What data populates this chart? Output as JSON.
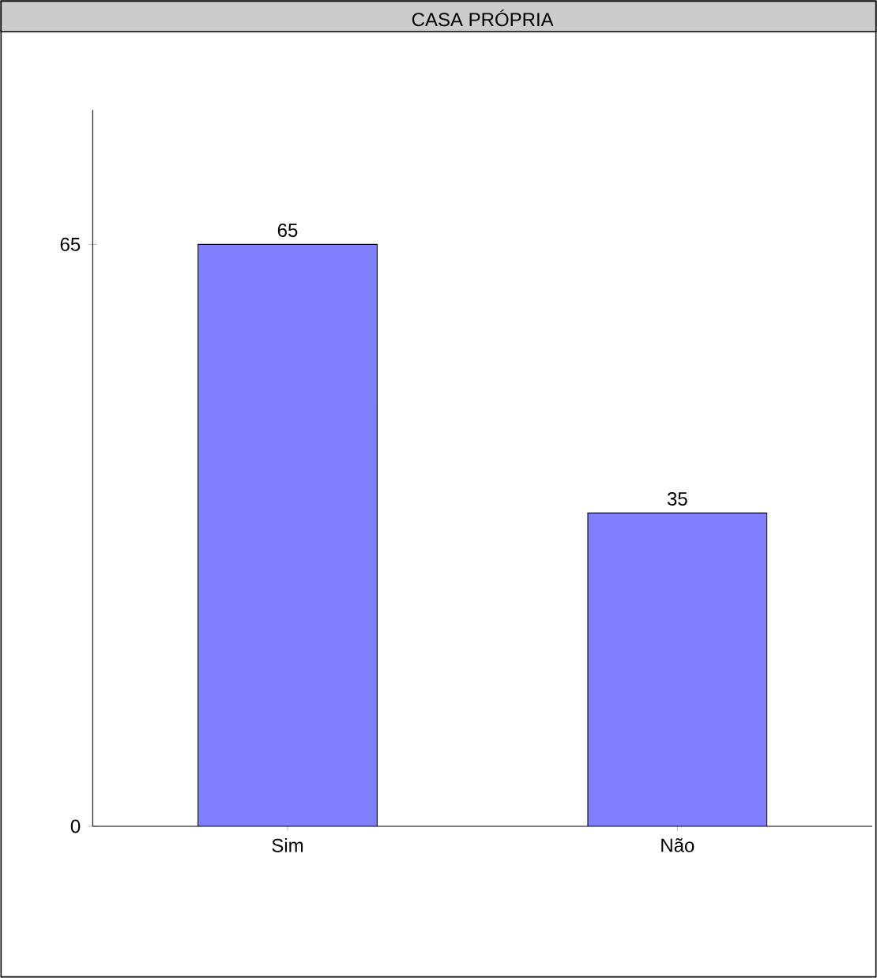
{
  "chart_data": {
    "type": "bar",
    "title": "CASA PRÓPRIA",
    "categories": [
      "Sim",
      "Não"
    ],
    "values": [
      65,
      35
    ],
    "color": "#8080ff",
    "ylim": [
      0,
      80
    ],
    "yticks": [
      0,
      65
    ],
    "data_labels": true
  }
}
